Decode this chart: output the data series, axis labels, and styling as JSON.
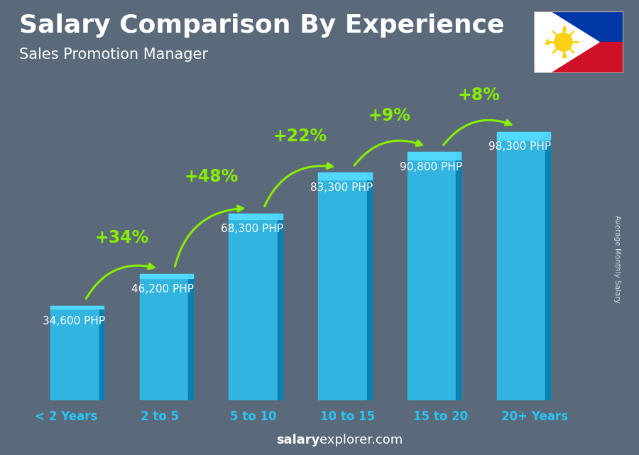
{
  "title": "Salary Comparison By Experience",
  "subtitle": "Sales Promotion Manager",
  "categories": [
    "< 2 Years",
    "2 to 5",
    "5 to 10",
    "10 to 15",
    "15 to 20",
    "20+ Years"
  ],
  "values": [
    34600,
    46200,
    68300,
    83300,
    90800,
    98300
  ],
  "value_labels": [
    "34,600 PHP",
    "46,200 PHP",
    "68,300 PHP",
    "83,300 PHP",
    "90,800 PHP",
    "98,300 PHP"
  ],
  "pct_labels": [
    "+34%",
    "+48%",
    "+22%",
    "+9%",
    "+8%"
  ],
  "bar_face_color": "#29c5f6",
  "bar_right_color": "#0077aa",
  "bar_top_color": "#55ddff",
  "bar_alpha": 0.82,
  "green_color": "#88ee00",
  "white_color": "#ffffff",
  "value_label_color": "#ffffff",
  "ylabel_text": "Average Monthly Salary",
  "footer_bold": "salary",
  "footer_normal": "explorer.com",
  "bg_color": "#5a6a7a",
  "overlay_alpha": 0.55,
  "title_fontsize": 26,
  "subtitle_fontsize": 15,
  "pct_fontsize": 17,
  "value_fontsize": 11,
  "cat_fontsize": 12,
  "footer_fontsize": 13
}
